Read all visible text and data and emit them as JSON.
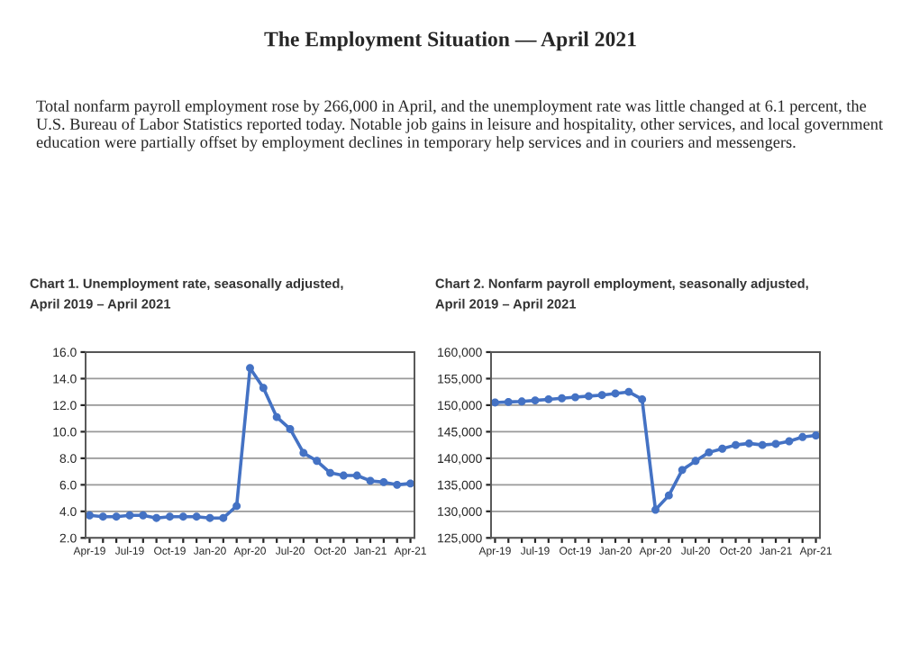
{
  "chart_data": [
    {
      "type": "other",
      "title": "The Employment Situation — April 2021",
      "annotations": [
        "Total nonfarm payroll employment rose by 266,000 in April, and the unemployment rate was little changed at 6.1 percent, the U.S. Bureau of Labor Statistics reported today. Notable job gains in leisure and hospitality, other services, and local government education were partially offset by employment declines in temporary help services and in couriers and messengers."
      ]
    },
    {
      "type": "line",
      "title": "Chart 1. Unemployment rate, seasonally adjusted,",
      "subtitle": "April 2019 – April 2021",
      "categories": [
        "Apr-19",
        null,
        null,
        "Jul-19",
        null,
        null,
        "Oct-19",
        null,
        null,
        "Jan-20",
        null,
        null,
        "Apr-20",
        null,
        null,
        "Jul-20",
        null,
        null,
        "Oct-20",
        null,
        null,
        "Jan-21",
        null,
        null,
        "Apr-21"
      ],
      "series": [
        {
          "color": "#4472c4",
          "values": [
            3.7,
            3.6,
            3.6,
            3.7,
            3.7,
            3.5,
            3.6,
            3.6,
            3.6,
            3.5,
            3.5,
            4.4,
            14.8,
            13.3,
            11.1,
            10.2,
            8.4,
            7.8,
            6.9,
            6.7,
            6.7,
            6.3,
            6.2,
            6.0,
            6.1
          ]
        }
      ],
      "ylim": [
        2,
        16
      ],
      "yticks": [
        {
          "value": 2,
          "label": "2.0"
        },
        {
          "value": 4,
          "label": "4.0"
        },
        {
          "value": 6,
          "label": "6.0"
        },
        {
          "value": 8,
          "label": "8.0"
        },
        {
          "value": 10,
          "label": "10.0"
        },
        {
          "value": 12,
          "label": "12.0"
        },
        {
          "value": 14,
          "label": "14.0"
        },
        {
          "value": 16,
          "label": "16.0"
        }
      ],
      "grid": "y",
      "marker": "circle",
      "line_style": "solid"
    },
    {
      "type": "line",
      "title": "Chart 2. Nonfarm payroll employment, seasonally adjusted,",
      "subtitle": "April 2019 – April 2021",
      "categories": [
        "Apr-19",
        null,
        null,
        "Jul-19",
        null,
        null,
        "Oct-19",
        null,
        null,
        "Jan-20",
        null,
        null,
        "Apr-20",
        null,
        null,
        "Jul-20",
        null,
        null,
        "Oct-20",
        null,
        null,
        "Jan-21",
        null,
        null,
        "Apr-21"
      ],
      "series": [
        {
          "color": "#4472c4",
          "values": [
            150500,
            150600,
            150700,
            150900,
            151100,
            151300,
            151500,
            151700,
            151900,
            152200,
            152500,
            151100,
            130300,
            133000,
            137800,
            139500,
            141100,
            141800,
            142500,
            142800,
            142500,
            142700,
            143200,
            144000,
            144300
          ]
        }
      ],
      "ylim": [
        125000,
        160000
      ],
      "yticks": [
        {
          "value": 125000,
          "label": "125,000"
        },
        {
          "value": 130000,
          "label": "130,000"
        },
        {
          "value": 135000,
          "label": "135,000"
        },
        {
          "value": 140000,
          "label": "140,000"
        },
        {
          "value": 145000,
          "label": "145,000"
        },
        {
          "value": 150000,
          "label": "150,000"
        },
        {
          "value": 155000,
          "label": "155,000"
        },
        {
          "value": 160000,
          "label": "160,000"
        }
      ],
      "grid": "y",
      "marker": "circle",
      "line_style": "solid"
    }
  ]
}
